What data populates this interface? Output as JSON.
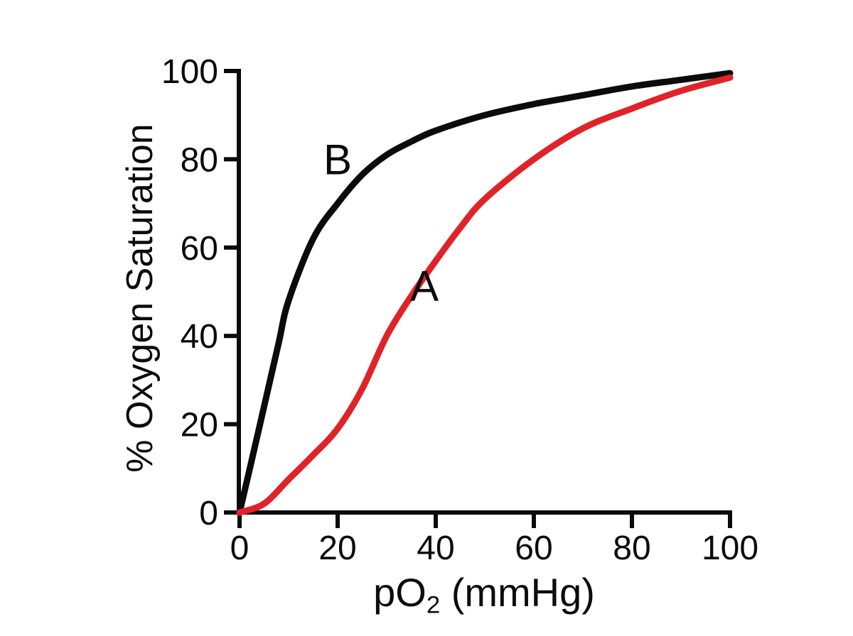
{
  "figure": {
    "background": "#ffffff"
  },
  "chart_data": {
    "type": "line",
    "title": "",
    "xlabel": "pO2 (mmHg)",
    "xlabel_parts": {
      "pre": "pO",
      "sub": "2",
      "post": " (mmHg)"
    },
    "ylabel": "% Oxygen Saturation",
    "xlim": [
      0,
      100
    ],
    "ylim": [
      0,
      100
    ],
    "x_ticks": [
      0,
      20,
      40,
      60,
      80,
      100
    ],
    "y_ticks": [
      0,
      20,
      40,
      60,
      80,
      100
    ],
    "grid": false,
    "legend": "none",
    "axis_color": "#0b0b0b",
    "tick_label_color": "#0b0b0b",
    "series": [
      {
        "name": "B",
        "label": "B",
        "color": "#0b0b0b",
        "x": [
          0,
          2,
          5,
          8,
          10,
          15,
          20,
          25,
          30,
          35,
          40,
          50,
          60,
          70,
          80,
          90,
          100
        ],
        "y": [
          0,
          9.5,
          24,
          38.5,
          48,
          62,
          70,
          76.5,
          81,
          84,
          86.5,
          90,
          92.5,
          94.5,
          96.5,
          98,
          99.5
        ],
        "label_at": {
          "x": 20,
          "y": 80
        }
      },
      {
        "name": "A",
        "label": "A",
        "color": "#e02329",
        "x": [
          0,
          5,
          10,
          15,
          20,
          25,
          30,
          35,
          40,
          45,
          50,
          60,
          70,
          80,
          90,
          100
        ],
        "y": [
          0,
          2,
          7.5,
          13,
          19,
          28,
          40,
          49,
          57,
          64.5,
          71,
          80,
          87,
          91.5,
          95.5,
          98.5
        ],
        "label_at": {
          "x": 37.7,
          "y": 51.4
        }
      }
    ]
  }
}
